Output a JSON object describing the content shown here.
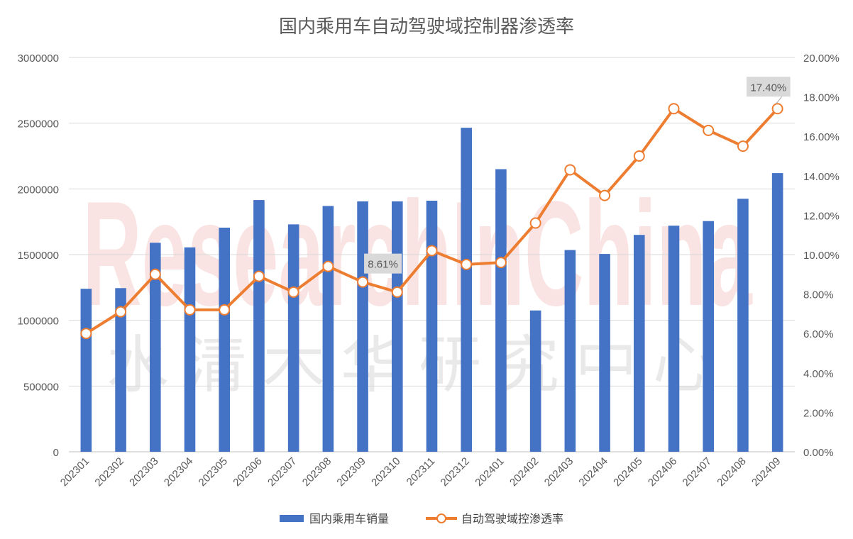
{
  "chart_data": {
    "type": "bar",
    "title": "国内乘用车自动驾驶域控制器渗透率",
    "categories": [
      "202301",
      "202302",
      "202303",
      "202304",
      "202305",
      "202306",
      "202307",
      "202308",
      "202309",
      "202310",
      "202311",
      "202312",
      "202401",
      "202402",
      "202403",
      "202404",
      "202405",
      "202406",
      "202407",
      "202408",
      "202409"
    ],
    "series": [
      {
        "name": "国内乘用车销量",
        "type": "bar",
        "axis": "left",
        "color": "#4472C4",
        "values": [
          1240000,
          1245000,
          1590000,
          1555000,
          1705000,
          1915000,
          1730000,
          1870000,
          1905000,
          1905000,
          1910000,
          2465000,
          2150000,
          1075000,
          1535000,
          1505000,
          1650000,
          1720000,
          1755000,
          1925000,
          2120000
        ]
      },
      {
        "name": "自动驾驶域控渗透率",
        "type": "line",
        "axis": "right",
        "color": "#ED7D31",
        "values": [
          6.0,
          7.1,
          9.0,
          7.2,
          7.2,
          8.9,
          8.1,
          9.4,
          8.61,
          8.1,
          10.2,
          9.5,
          9.6,
          11.6,
          14.3,
          13.0,
          15.0,
          17.4,
          16.3,
          15.5,
          17.4
        ]
      }
    ],
    "left_axis": {
      "ylim": [
        0,
        3000000
      ],
      "ticks": [
        "0",
        "500000",
        "1000000",
        "1500000",
        "2000000",
        "2500000",
        "3000000"
      ]
    },
    "right_axis": {
      "ylim": [
        0,
        20
      ],
      "ticks": [
        "0.00%",
        "2.00%",
        "4.00%",
        "6.00%",
        "8.00%",
        "10.00%",
        "12.00%",
        "14.00%",
        "16.00%",
        "18.00%",
        "20.00%"
      ]
    },
    "data_labels": [
      {
        "series": 1,
        "index": 8,
        "text": "8.61%"
      },
      {
        "series": 1,
        "index": 20,
        "text": "17.40%"
      }
    ],
    "grid": true,
    "legend": "bottom",
    "watermark": {
      "en": "ResearchInChina",
      "cn": "水清木华研究中心"
    }
  }
}
